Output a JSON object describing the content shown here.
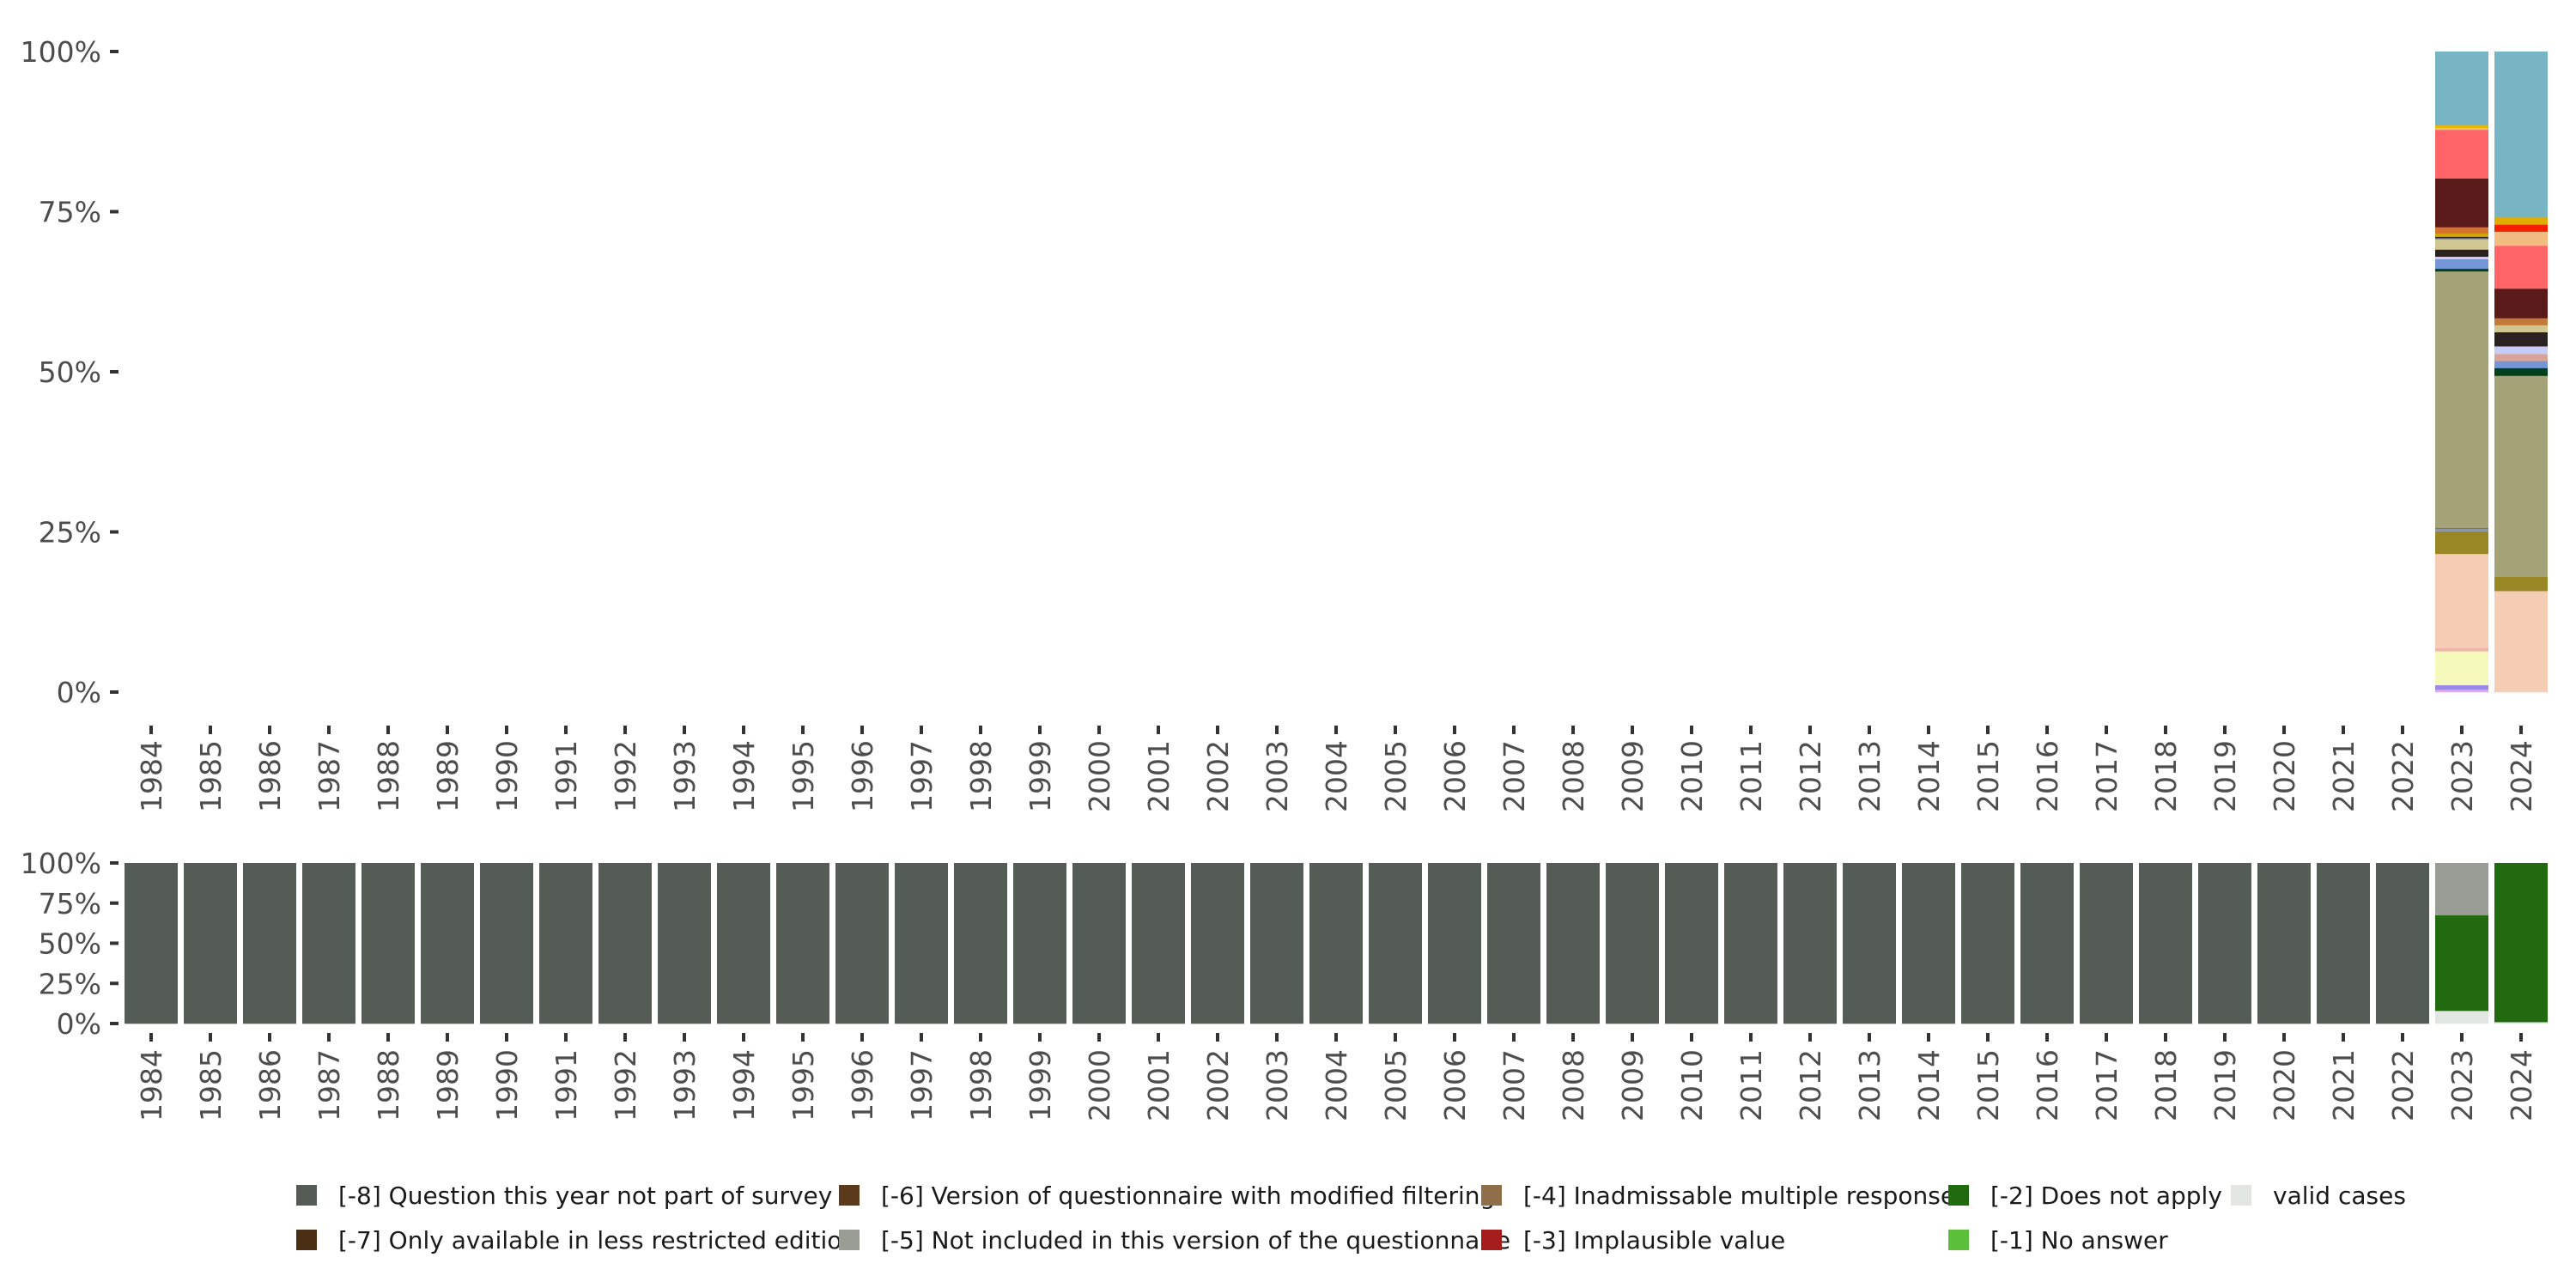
{
  "chart_data": [
    {
      "type": "bar",
      "stacked": true,
      "title": "",
      "xlabel": "",
      "ylabel": "",
      "ylim": [
        0,
        100
      ],
      "yticks": [
        "0%",
        "25%",
        "50%",
        "75%",
        "100%"
      ],
      "grid": false,
      "categories": [
        "1984",
        "1985",
        "1986",
        "1987",
        "1988",
        "1989",
        "1990",
        "1991",
        "1992",
        "1993",
        "1994",
        "1995",
        "1996",
        "1997",
        "1998",
        "1999",
        "2000",
        "2001",
        "2002",
        "2003",
        "2004",
        "2005",
        "2006",
        "2007",
        "2008",
        "2009",
        "2010",
        "2011",
        "2012",
        "2013",
        "2014",
        "2015",
        "2016",
        "2017",
        "2018",
        "2019",
        "2020",
        "2021",
        "2022",
        "2023",
        "2024"
      ],
      "stacks": {
        "2023": [
          {
            "color": "#e3a8f0",
            "value": 0.4
          },
          {
            "color": "#9a8ae8",
            "value": 0.7
          },
          {
            "color": "#f5f9bc",
            "value": 5.3
          },
          {
            "color": "#f4b0ac",
            "value": 0.5
          },
          {
            "color": "#f5cdb5",
            "value": 14.7
          },
          {
            "color": "#998725",
            "value": 3.5
          },
          {
            "color": "#8d9aa8",
            "value": 0.4
          },
          {
            "color": "#c0392b",
            "value": 0.1
          },
          {
            "color": "#a3a377",
            "value": 40.1
          },
          {
            "color": "#00401c",
            "value": 0.4
          },
          {
            "color": "#7596d6",
            "value": 1.5
          },
          {
            "color": "#d8c8f0",
            "value": 0.4
          },
          {
            "color": "#2a2220",
            "value": 1.1
          },
          {
            "color": "#cfc691",
            "value": 1.6
          },
          {
            "color": "#8a8a80",
            "value": 0.2
          },
          {
            "color": "#2a2220",
            "value": 0.2
          },
          {
            "color": "#d0a800",
            "value": 0.5
          },
          {
            "color": "#d6742f",
            "value": 1.0
          },
          {
            "color": "#5b1a1a",
            "value": 7.6
          },
          {
            "color": "#ff6468",
            "value": 7.6
          },
          {
            "color": "#f2bb80",
            "value": 0.3
          },
          {
            "color": "#e6b800",
            "value": 0.4
          },
          {
            "color": "#77b5c4",
            "value": 11.5
          }
        ],
        "2024": [
          {
            "color": "#f5cdb5",
            "value": 15.8
          },
          {
            "color": "#998725",
            "value": 2.2
          },
          {
            "color": "#a3a377",
            "value": 31.4
          },
          {
            "color": "#00401c",
            "value": 1.2
          },
          {
            "color": "#7596d6",
            "value": 1.1
          },
          {
            "color": "#d9a396",
            "value": 1.1
          },
          {
            "color": "#c8ccf5",
            "value": 1.2
          },
          {
            "color": "#2a2220",
            "value": 2.2
          },
          {
            "color": "#cfc691",
            "value": 1.1
          },
          {
            "color": "#c27a3a",
            "value": 1.1
          },
          {
            "color": "#5b1a1a",
            "value": 4.6
          },
          {
            "color": "#ff6468",
            "value": 6.7
          },
          {
            "color": "#f2bb80",
            "value": 2.2
          },
          {
            "color": "#f52200",
            "value": 1.1
          },
          {
            "color": "#e0ac00",
            "value": 1.2
          },
          {
            "color": "#77b5c4",
            "value": 25.8
          }
        ]
      }
    },
    {
      "type": "bar",
      "stacked": true,
      "title": "",
      "xlabel": "",
      "ylabel": "",
      "ylim": [
        0,
        100
      ],
      "yticks": [
        "0%",
        "25%",
        "50%",
        "75%",
        "100%"
      ],
      "grid": false,
      "categories": [
        "1984",
        "1985",
        "1986",
        "1987",
        "1988",
        "1989",
        "1990",
        "1991",
        "1992",
        "1993",
        "1994",
        "1995",
        "1996",
        "1997",
        "1998",
        "1999",
        "2000",
        "2001",
        "2002",
        "2003",
        "2004",
        "2005",
        "2006",
        "2007",
        "2008",
        "2009",
        "2010",
        "2011",
        "2012",
        "2013",
        "2014",
        "2015",
        "2016",
        "2017",
        "2018",
        "2019",
        "2020",
        "2021",
        "2022",
        "2023",
        "2024"
      ],
      "default_stack": [
        {
          "series": "[-8] Question this year not part of survey",
          "value": 100
        }
      ],
      "stacks": {
        "2023": [
          {
            "series": "valid cases",
            "value": 8.0
          },
          {
            "series": "[-2] Does not apply",
            "value": 59.5
          },
          {
            "series": "[-5] Not included in this version of the questionnaire",
            "value": 32.5
          }
        ],
        "2024": [
          {
            "series": "valid cases",
            "value": 1.0
          },
          {
            "series": "[-2] Does not apply",
            "value": 99.0
          }
        ]
      },
      "legend_position": "bottom",
      "legend": [
        {
          "label": "[-8] Question this year not part of survey",
          "color": "#555c56"
        },
        {
          "label": "[-7] Only available in less restricted edition",
          "color": "#4a2e14"
        },
        {
          "label": "[-6] Version of questionnaire with modified filtering",
          "color": "#5a3a1a"
        },
        {
          "label": "[-5] Not included in this version of the questionnaire",
          "color": "#9a9c96"
        },
        {
          "label": "[-4] Inadmissable multiple response",
          "color": "#8f6e4a"
        },
        {
          "label": "[-3] Implausible value",
          "color": "#a51c1c"
        },
        {
          "label": "[-2] Does not apply",
          "color": "#216a10"
        },
        {
          "label": "[-1] No answer",
          "color": "#5bbf3c"
        },
        {
          "label": "valid cases",
          "color": "#e2e6e2"
        }
      ]
    }
  ]
}
